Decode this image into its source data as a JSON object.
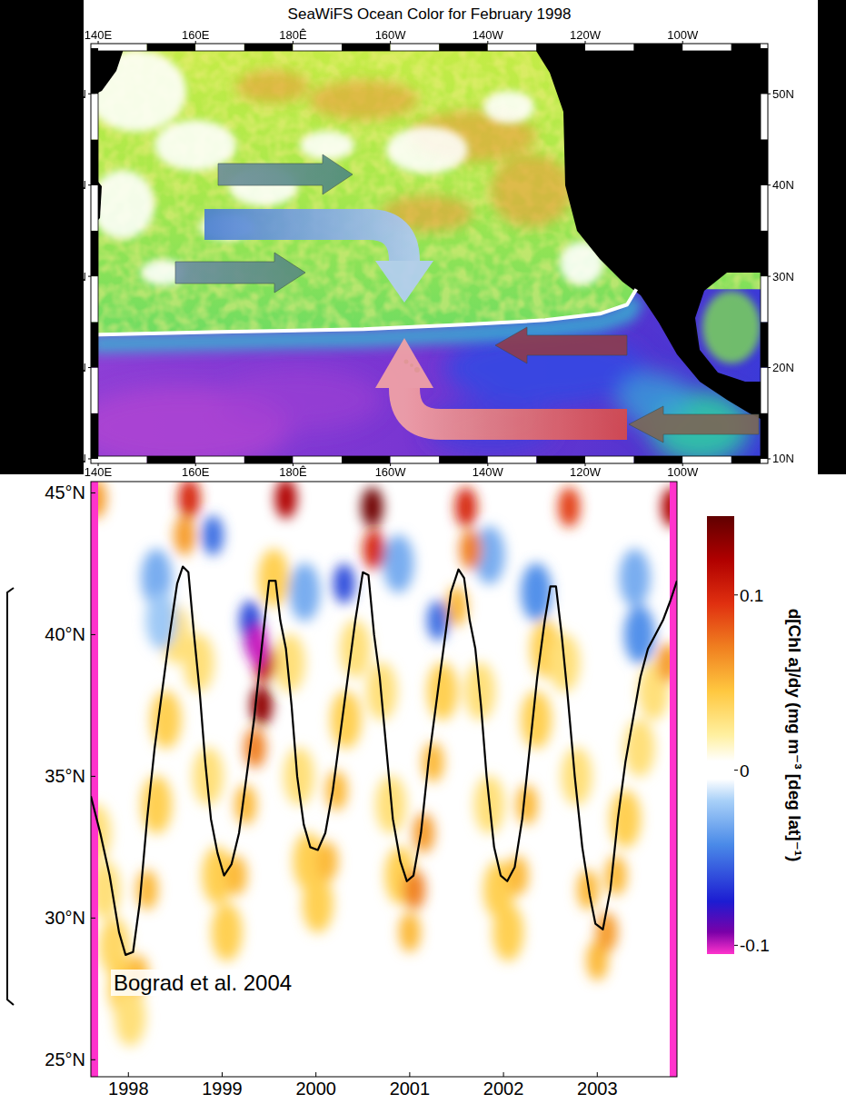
{
  "chart_data": [
    {
      "type": "map",
      "title": "SeaWiFS Ocean Color for February 1998",
      "xlim": [
        138.5,
        277.5
      ],
      "ylim": [
        9.5,
        55.5
      ],
      "xticks": [
        {
          "value": 140,
          "label": "140E"
        },
        {
          "value": 160,
          "label": "160E"
        },
        {
          "value": 180,
          "label": "180Ê"
        },
        {
          "value": 200,
          "label": "160W"
        },
        {
          "value": 220,
          "label": "140W"
        },
        {
          "value": 240,
          "label": "120W"
        },
        {
          "value": 260,
          "label": "100W"
        }
      ],
      "yticks": [
        {
          "value": 50,
          "label": "50N"
        },
        {
          "value": 40,
          "label": "40N"
        },
        {
          "value": 30,
          "label": "30N"
        },
        {
          "value": 20,
          "label": "20N"
        },
        {
          "value": 10,
          "label": "10N"
        }
      ],
      "front": {
        "color": "#ffffff",
        "x": [
          138.5,
          165,
          194.5,
          215,
          231.8,
          243,
          248.6,
          250.5
        ],
        "y": [
          23.6,
          23.9,
          24.2,
          24.7,
          25.2,
          25.9,
          26.9,
          28.6
        ]
      }
    },
    {
      "type": "contour",
      "annotation": "Bograd et al. 2004",
      "xlim": [
        1997.6,
        2003.85
      ],
      "ylim": [
        24.4,
        45.4
      ],
      "xticks": [
        1998,
        1999,
        2000,
        2001,
        2002,
        2003
      ],
      "yticks": [
        {
          "value": 45,
          "label": "45°N"
        },
        {
          "value": 40,
          "label": "40°N"
        },
        {
          "value": 35,
          "label": "35°N"
        },
        {
          "value": 30,
          "label": "30°N"
        },
        {
          "value": 25,
          "label": "25°N"
        }
      ],
      "x": [
        1997.6,
        1997.7,
        1997.8,
        1997.9,
        1997.97,
        1998.05,
        1998.12,
        1998.2,
        1998.28,
        1998.36,
        1998.44,
        1998.52,
        1998.58,
        1998.64,
        1998.7,
        1998.76,
        1998.82,
        1998.88,
        1998.95,
        1999.02,
        1999.1,
        1999.18,
        1999.26,
        1999.34,
        1999.42,
        1999.5,
        1999.57,
        1999.62,
        1999.68,
        1999.74,
        1999.8,
        1999.87,
        1999.94,
        2000.02,
        2000.1,
        2000.18,
        2000.26,
        2000.34,
        2000.42,
        2000.5,
        2000.56,
        2000.62,
        2000.68,
        2000.75,
        2000.82,
        2000.9,
        2000.97,
        2001.04,
        2001.12,
        2001.2,
        2001.28,
        2001.36,
        2001.44,
        2001.52,
        2001.58,
        2001.64,
        2001.7,
        2001.76,
        2001.82,
        2001.9,
        2001.97,
        2002.04,
        2002.12,
        2002.2,
        2002.28,
        2002.36,
        2002.44,
        2002.5,
        2002.56,
        2002.62,
        2002.68,
        2002.76,
        2002.84,
        2002.92,
        2002.98,
        2003.06,
        2003.14,
        2003.22,
        2003.3,
        2003.38,
        2003.46,
        2003.54,
        2003.62,
        2003.7,
        2003.78,
        2003.85
      ],
      "series": [
        {
          "color": "#000000",
          "values": [
            34.3,
            33.0,
            31.5,
            29.5,
            28.7,
            28.8,
            30.5,
            33.5,
            36.0,
            38.0,
            40.0,
            41.8,
            42.4,
            42.2,
            40.0,
            38.0,
            35.5,
            33.5,
            32.3,
            31.5,
            31.9,
            33.0,
            35.0,
            37.0,
            39.5,
            41.9,
            41.9,
            40.5,
            39.5,
            37.5,
            35.0,
            33.3,
            32.5,
            32.4,
            33.0,
            34.5,
            36.5,
            38.5,
            40.5,
            42.2,
            42.1,
            40.0,
            38.5,
            36.0,
            33.5,
            32.0,
            31.3,
            31.5,
            33.0,
            35.5,
            37.5,
            39.5,
            41.5,
            42.3,
            42.0,
            40.5,
            39.5,
            37.5,
            35.0,
            32.5,
            31.5,
            31.3,
            31.8,
            33.5,
            36.0,
            38.5,
            40.5,
            41.7,
            41.7,
            40.0,
            38.0,
            35.0,
            32.5,
            30.8,
            29.8,
            29.6,
            31.0,
            33.5,
            35.5,
            37.0,
            38.5,
            39.5,
            40.0,
            40.5,
            41.2,
            41.9
          ]
        }
      ],
      "field": {
        "x": [
          1997.65,
          1997.65,
          1997.75,
          1997.85,
          1997.95,
          1998.02,
          1998.1,
          1998.2,
          1998.3,
          1998.4,
          1998.5,
          1998.6,
          1998.65,
          1998.75,
          1998.85,
          1998.95,
          1999.05,
          1999.15,
          1999.25,
          1999.35,
          1999.42,
          1999.45,
          1999.55,
          1999.68,
          1999.72,
          1999.82,
          1999.92,
          2000.02,
          2000.12,
          2000.22,
          2000.32,
          2000.42,
          2000.6,
          2000.62,
          2000.7,
          2000.8,
          2000.9,
          2001,
          2001.05,
          2001.15,
          2001.25,
          2001.35,
          2001.5,
          2001.6,
          2001.65,
          2001.75,
          2001.85,
          2001.95,
          2002.05,
          2002.15,
          2002.25,
          2002.35,
          2002.45,
          2002.65,
          2002.7,
          2002.78,
          2002.9,
          2003,
          2003.1,
          2003.2,
          2003.3,
          2003.45,
          2003.6,
          2003.75,
          2003.8,
          1998.3,
          1998.35,
          1998.9,
          1999.3,
          1999.35,
          1999.38,
          1999.88,
          2000.3,
          2000.88,
          2001.3,
          2001.85,
          2002.35,
          2003.4,
          2003.45
        ],
        "y": [
          44.8,
          33,
          31,
          29,
          27.5,
          26.5,
          28,
          31,
          34,
          37,
          40,
          43.5,
          44.8,
          39,
          35,
          31.5,
          29.5,
          31.5,
          34,
          36,
          37.5,
          39,
          42,
          44.8,
          39,
          35,
          32,
          30.5,
          32,
          34.5,
          37,
          39.5,
          44.5,
          43,
          38,
          34,
          31.5,
          29.5,
          31,
          33,
          35.5,
          38,
          41,
          44.5,
          43,
          38,
          34,
          31,
          29.5,
          31.5,
          34,
          37,
          39.5,
          39,
          44.5,
          35,
          31,
          28.5,
          29.5,
          31.5,
          33.5,
          36,
          38,
          39,
          44.5,
          42,
          40.5,
          43.5,
          40.5,
          39.8,
          39.6,
          41.5,
          41.8,
          42.5,
          40.5,
          42.8,
          41.5,
          42,
          40
        ],
        "values": [
          0.06,
          0.03,
          0.03,
          0.035,
          0.04,
          0.03,
          0.05,
          0.05,
          0.04,
          0.04,
          0.03,
          0.06,
          0.1,
          0.03,
          0.03,
          0.04,
          0.04,
          0.05,
          0.05,
          0.07,
          0.13,
          0.11,
          0.04,
          0.12,
          0.03,
          0.03,
          0.04,
          0.04,
          0.05,
          0.05,
          0.04,
          0.03,
          0.14,
          0.1,
          0.03,
          0.03,
          0.04,
          0.05,
          0.07,
          0.06,
          0.05,
          0.04,
          0.05,
          0.1,
          0.07,
          0.03,
          0.03,
          0.04,
          0.04,
          0.05,
          0.05,
          0.04,
          0.04,
          0.03,
          0.09,
          0.03,
          0.05,
          0.05,
          0.06,
          0.05,
          0.04,
          0.03,
          0.03,
          0.06,
          0.12,
          -0.03,
          -0.02,
          -0.05,
          -0.06,
          -0.08,
          -0.1,
          -0.03,
          -0.06,
          -0.03,
          -0.05,
          -0.03,
          -0.04,
          -0.03,
          -0.04
        ]
      },
      "colorbar": {
        "label": "d[Chl a]/dy  (mg m⁻³ [deg lat]⁻¹)",
        "lim": [
          -0.105,
          0.145
        ],
        "ticks": [
          0.1,
          0,
          -0.1
        ]
      }
    }
  ]
}
